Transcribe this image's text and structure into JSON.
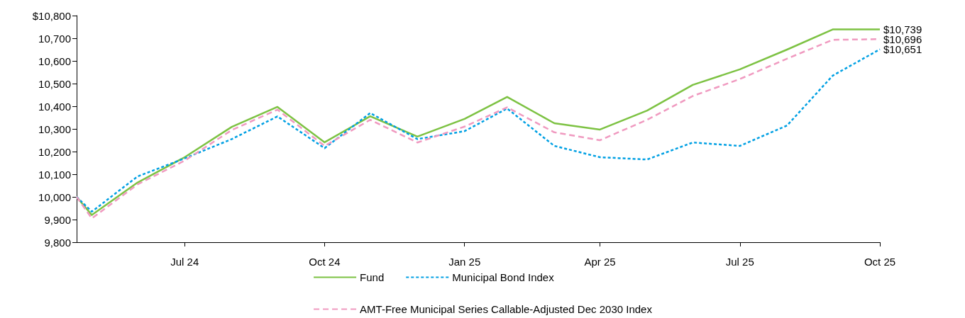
{
  "chart_data": {
    "type": "line",
    "x": [
      "2024-05-21",
      "2024-05-31",
      "2024-06-30",
      "2024-07-31",
      "2024-08-31",
      "2024-09-30",
      "2024-10-31",
      "2024-11-30",
      "2024-12-31",
      "2025-01-31",
      "2025-02-28",
      "2025-03-31",
      "2025-04-30",
      "2025-05-31",
      "2025-06-30",
      "2025-07-31",
      "2025-08-31",
      "2025-09-30",
      "2025-10-31"
    ],
    "series": [
      {
        "name": "Fund",
        "color": "#7dc243",
        "line_style": "solid",
        "values": [
          10000,
          9920,
          10063,
          10175,
          10309,
          10397,
          10241,
          10356,
          10266,
          10344,
          10441,
          10325,
          10297,
          10381,
          10494,
          10563,
          10650,
          10739,
          10739
        ],
        "value_labels": [
          null,
          null,
          null,
          null,
          null,
          null,
          null,
          null,
          null,
          null,
          null,
          null,
          null,
          null,
          null,
          null,
          null,
          null,
          "$10,739"
        ]
      },
      {
        "name": "Municipal Bond Index",
        "color": "#00a0e3",
        "line_style": "dotted",
        "values": [
          10000,
          9935,
          10090,
          10170,
          10255,
          10355,
          10215,
          10370,
          10255,
          10290,
          10390,
          10225,
          10175,
          10165,
          10240,
          10225,
          10315,
          10535,
          10651
        ],
        "value_labels": [
          null,
          null,
          null,
          null,
          null,
          null,
          null,
          null,
          null,
          null,
          null,
          null,
          null,
          null,
          null,
          null,
          null,
          null,
          "$10,651"
        ]
      },
      {
        "name": "AMT-Free Municipal Series Callable-Adjusted Dec 2030 Index",
        "color": "#f09ac0",
        "line_style": "dashed",
        "values": [
          10000,
          9905,
          10055,
          10160,
          10295,
          10385,
          10225,
          10340,
          10240,
          10310,
          10395,
          10285,
          10250,
          10340,
          10445,
          10520,
          10610,
          10693,
          10696
        ],
        "value_labels": [
          null,
          null,
          null,
          null,
          null,
          null,
          null,
          null,
          null,
          null,
          null,
          null,
          null,
          null,
          null,
          null,
          null,
          null,
          "$10,696"
        ]
      }
    ],
    "xlim": [
      "2024-05-21",
      "2025-10-31"
    ],
    "xticks": [
      {
        "value": "2024-07-31",
        "label": "Jul 24"
      },
      {
        "value": "2024-10-31",
        "label": "Oct 24"
      },
      {
        "value": "2025-01-31",
        "label": "Jan 25"
      },
      {
        "value": "2025-04-30",
        "label": "Apr 25"
      },
      {
        "value": "2025-07-31",
        "label": "Jul 25"
      },
      {
        "value": "2025-10-31",
        "label": "Oct 25"
      }
    ],
    "ylim": [
      9800,
      10800
    ],
    "yticks": [
      {
        "value": 9800,
        "label": "9,800"
      },
      {
        "value": 9900,
        "label": "9,900"
      },
      {
        "value": 10000,
        "label": "10,000"
      },
      {
        "value": 10100,
        "label": "10,100"
      },
      {
        "value": 10200,
        "label": "10,200"
      },
      {
        "value": 10300,
        "label": "10,300"
      },
      {
        "value": 10400,
        "label": "10,400"
      },
      {
        "value": 10500,
        "label": "10,500"
      },
      {
        "value": 10600,
        "label": "10,600"
      },
      {
        "value": 10700,
        "label": "10,700"
      },
      {
        "value": 10800,
        "label": "$10,800"
      }
    ],
    "grid": false,
    "legend": "bottom",
    "marker": "none"
  }
}
